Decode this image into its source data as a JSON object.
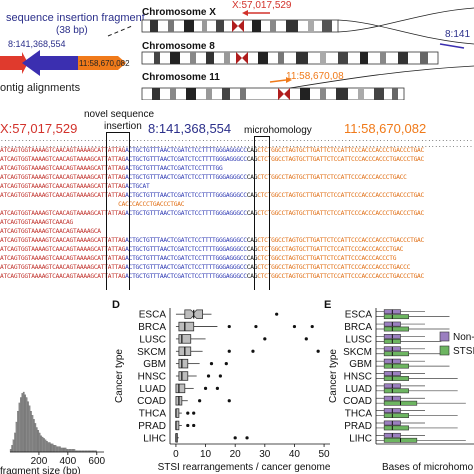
{
  "panel_top": {
    "fragment_title_1": "sequence insertion fragment",
    "fragment_title_2": "(38 bp)",
    "mid_coord": "8:141,368,554",
    "right_coord": "11:58,670,082",
    "contig_label": "ontig alignments",
    "chr_x_label": "Chromosome X",
    "chr_x_coord": "X:57,017,529",
    "chr_8_label": "Chromosome 8",
    "chr_8_coord": "8:141",
    "chr_11_label": "Chromosome 11",
    "chr_11_coord": "11:58,670,08"
  },
  "panel_alignment": {
    "coord_x": "X:57,017,529",
    "coord_8": "8:141,368,554",
    "coord_11": "11:58,670,082",
    "label_novel": "novel sequence",
    "label_insertion": "insertion",
    "label_microhomology": "microhomology",
    "ref_line": "..............................................................................................................................................................................",
    "rows": [
      {
        "a": "ATCAGTGGTAAAAGTCAACAGTAAAAGCAT",
        "b": "TATTAG",
        "c": "ACTGCTGTTTAACTCGATCTCCTTTTGGGAGGGCC",
        "m": "CAG",
        "d": "CTCTGGCCTAGTGCTTGATTCTCCATTCCCACCCACCCTGACCCTGAC"
      },
      {
        "a": "ATCAGTGGTAAAAGTCAACAGTAAAAGCAT",
        "b": "TATTAG",
        "c": "ACTGCTGTTTAACTCGATCTCCTTTTGGGAGGGCC",
        "m": "CAG",
        "d": "CTCTGGCCTAGTGCTTGATTCTCCATTCCCACCCACCCTGACCCTGAC"
      },
      {
        "a": "ATCAGTGGTAAAAGTCAACAGTAAAAGCAT",
        "b": "TATTAG",
        "c": "ACTGCTGTTTAACTCGATCTCCTTTTGG",
        "m": "",
        "d": ""
      },
      {
        "a": "ATCAGTGGTAAAAGTCAACAGTAAAAGCAT",
        "b": "TATTAG",
        "c": "ACTGCTGTTTAACTCGATCTCCTTTTGGGAGGGCC",
        "m": "CAG",
        "d": "CTCTGGCCTAGTGCTTGATTCTCCATTCCCACCCACCCTGACC"
      },
      {
        "a": "ATCAGTGGTAAAAGTCAACAGTAAAAGCAT",
        "b": "TATTAG",
        "c": "ACTGCAT",
        "m": "",
        "d": ""
      },
      {
        "a": "ATCAGTGGTAAAAGTCAACAGTAAAAGCAT",
        "b": "TATTAG",
        "c": "ACTGCTGTTTAACTCGATCTCCTTTTGGGAGGGCC",
        "m": "CAG",
        "d": "CTCTGGCCTAGTGCTTGATTCTCCATTCCCACCCACCCTGACCCTGAC"
      },
      {
        "a": "",
        "b": "",
        "c": "",
        "m": "",
        "d": "                                  CACCCACCCTGACCCTGAC"
      },
      {
        "a": "ATCAGTGGTAAAAGTCAACAGTAAAAGCAT",
        "b": "TATTAG",
        "c": "ACTGCTGTTTAACTCGATCTCCTTTTGGGAGGGCC",
        "m": "CAG",
        "d": "CTCTGGCCTAGTGCTTGATTCTCCATTCCCACCCACCCTGACCCTGAC"
      },
      {
        "a": "ATCAGTGGTAAAAGTCAACAG",
        "b": "",
        "c": "",
        "m": "",
        "d": ""
      },
      {
        "a": "ATCAGTGGTAAAAGTCAACAGTAAAAGCA",
        "b": "",
        "c": "",
        "m": "",
        "d": ""
      },
      {
        "a": "ATCAGTGGTAAAAGTCAACAGTAAAAGCAT",
        "b": "TATTAG",
        "c": "ACTGCTGTTTAACTCGATCTCCTTTTGGGAGGGCC",
        "m": "CAG",
        "d": "CTCTGGCCTAGTGCTTGATTCTCCATTCCCACCCACCCTGACCCTGAC"
      },
      {
        "a": "ATCAGTGGTAAAAGTCAACAGTAAAAGCAT",
        "b": "TATTAG",
        "c": "ACTGCTGTTTAACTCGATCTCCTTTTGGGAGGGCC",
        "m": "CAG",
        "d": "CTCTGGCCTAGTGCTTGATTCTCCATTCCCACCCACCCTGAC"
      },
      {
        "a": "ATCAGTGGTAAAAGTCAACAGTAAAAGCAT",
        "b": "TATTAG",
        "c": "ACTGCTGTTTAACTCGATCTCCTTTTGGGAGGGCC",
        "m": "CAG",
        "d": "CTCTGGCCTAGTGCTTGATTCTCCATTCCCACCCACCCTG"
      },
      {
        "a": "ATCAGTGGTAAAAGTCAACAGTAAAAGCAT",
        "b": "TATTAG",
        "c": "ACTGCTGTTTAACTCGATCTCCTTTTGGGAGGGCC",
        "m": "CAG",
        "d": "CTCTGGCCTAGTGCTTGATTCTCCATTCCCACCCACCCTGACCC"
      },
      {
        "a": "ATCAGTGGTAAAAGTCAACAGTAAAAGCAT",
        "b": "TATTAG",
        "c": "ACTGCTGTTTAACTCGATCTCCTTTTGGGAGGGCC",
        "m": "CAG",
        "d": "CTCTGGCCTAGTGCTTGATTCTCCATTCCCACCCACCCTGACCCTGAC"
      }
    ]
  },
  "chart_data": [
    {
      "panel": "C",
      "type": "bar",
      "title": "",
      "xlabel": "fragment size (bp)",
      "ylabel": "",
      "xticks": [
        "200",
        "400",
        "600"
      ],
      "xlim": [
        0,
        650
      ],
      "grid": false,
      "bin_width": 10,
      "values": [
        2,
        5,
        9,
        14,
        22,
        30,
        36,
        40,
        43,
        44,
        42,
        40,
        37,
        34,
        30,
        27,
        24,
        21,
        18,
        16,
        14,
        12,
        11,
        10,
        9,
        8,
        7,
        7,
        6,
        6,
        5,
        5,
        4,
        4,
        4,
        3,
        3,
        3,
        3,
        2,
        2,
        2,
        2,
        2,
        2,
        1,
        1,
        1,
        1,
        1,
        1,
        1,
        1,
        1,
        1,
        1,
        1,
        1,
        1,
        1
      ]
    },
    {
      "panel": "D",
      "panel_label": "D",
      "type": "box",
      "ylabel": "Cancer type",
      "xlabel": "STSI rearrangements / cancer genome",
      "xticks": [
        "0",
        "10",
        "20",
        "30",
        "40",
        "50"
      ],
      "xlim": [
        -2,
        52
      ],
      "categories": [
        "ESCA",
        "BRCA",
        "LUSC",
        "SKCM",
        "GBM",
        "HNSC",
        "LUAD",
        "COAD",
        "THCA",
        "PRAD",
        "LIHC"
      ],
      "box": [
        {
          "q1": 3,
          "med": 6,
          "q3": 9,
          "wlo": 0,
          "whi": 12,
          "notch": true
        },
        {
          "q1": 1,
          "med": 3,
          "q3": 6,
          "wlo": 0,
          "whi": 14
        },
        {
          "q1": 1,
          "med": 2,
          "q3": 5,
          "wlo": 0,
          "whi": 10
        },
        {
          "q1": 1,
          "med": 3,
          "q3": 5,
          "wlo": 0,
          "whi": 9
        },
        {
          "q1": 1,
          "med": 2,
          "q3": 4,
          "wlo": 0,
          "whi": 8
        },
        {
          "q1": 1,
          "med": 2,
          "q3": 4,
          "wlo": 0,
          "whi": 7
        },
        {
          "q1": 0,
          "med": 1,
          "q3": 3,
          "wlo": 0,
          "whi": 6
        },
        {
          "q1": 0,
          "med": 1,
          "q3": 2,
          "wlo": 0,
          "whi": 4
        },
        {
          "q1": 0,
          "med": 0,
          "q3": 1,
          "wlo": 0,
          "whi": 2
        },
        {
          "q1": 0,
          "med": 0,
          "q3": 1,
          "wlo": 0,
          "whi": 2
        },
        {
          "q1": 0,
          "med": 0,
          "q3": 0.5,
          "wlo": 0,
          "whi": 1
        }
      ],
      "outliers": [
        [
          0,
          34
        ],
        [
          1,
          18
        ],
        [
          1,
          27
        ],
        [
          1,
          40
        ],
        [
          1,
          46
        ],
        [
          2,
          30
        ],
        [
          2,
          44
        ],
        [
          3,
          18
        ],
        [
          3,
          26
        ],
        [
          3,
          48
        ],
        [
          4,
          12
        ],
        [
          4,
          17
        ],
        [
          5,
          11
        ],
        [
          5,
          15
        ],
        [
          6,
          10
        ],
        [
          6,
          14
        ],
        [
          7,
          8
        ],
        [
          7,
          18
        ],
        [
          8,
          4
        ],
        [
          8,
          6
        ],
        [
          9,
          4
        ],
        [
          9,
          6
        ],
        [
          10,
          20
        ],
        [
          10,
          24
        ]
      ]
    },
    {
      "panel": "E",
      "panel_label": "E",
      "type": "box",
      "ylabel": "Cancer type",
      "xlabel": "Bases of microhomo",
      "categories": [
        "ESCA",
        "BRCA",
        "LUSC",
        "SKCM",
        "GBM",
        "HNSC",
        "LUAD",
        "COAD",
        "THCA",
        "PRAD",
        "LIHC"
      ],
      "xlim": [
        0,
        12
      ],
      "legend": [
        "Non-",
        "STSI"
      ],
      "legend_position": "right",
      "series": [
        {
          "name": "Non-",
          "color": "#9b7fc0",
          "box": [
            [
              1,
              2,
              3,
              0,
              6
            ],
            [
              1,
              2,
              3,
              0,
              6
            ],
            [
              1,
              2,
              3,
              0,
              6
            ],
            [
              1,
              2,
              3,
              0,
              6
            ],
            [
              1,
              2,
              3,
              0,
              6
            ],
            [
              1,
              2,
              3,
              0,
              6
            ],
            [
              1,
              2,
              3,
              0,
              6
            ],
            [
              1,
              2,
              3,
              0,
              6
            ],
            [
              1,
              2,
              3,
              0,
              6
            ],
            [
              1,
              2,
              3,
              0,
              6
            ],
            [
              1,
              2,
              3,
              0,
              6
            ]
          ]
        },
        {
          "name": "STSI",
          "color": "#6db561",
          "box": [
            [
              1,
              2,
              4,
              0,
              9
            ],
            [
              1,
              2,
              4,
              0,
              9
            ],
            [
              1,
              2,
              3,
              0,
              8
            ],
            [
              1,
              2,
              4,
              0,
              9
            ],
            [
              1,
              2,
              4,
              0,
              9
            ],
            [
              1,
              2,
              4,
              0,
              10
            ],
            [
              1,
              2,
              4,
              0,
              10
            ],
            [
              1,
              3,
              5,
              0,
              11
            ],
            [
              1,
              2,
              4,
              0,
              10
            ],
            [
              1,
              2,
              4,
              0,
              10
            ],
            [
              1,
              3,
              5,
              0,
              11
            ]
          ]
        }
      ]
    }
  ]
}
